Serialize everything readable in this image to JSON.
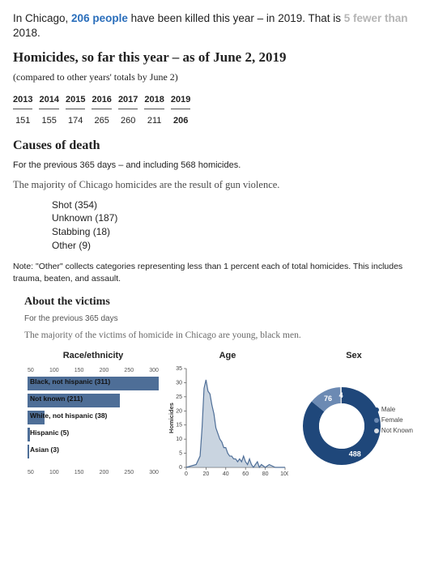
{
  "intro": {
    "prefix": "In Chicago, ",
    "count": "206 people",
    "mid": " have been killed this year – in 2019. That is ",
    "diff": "5 fewer than",
    "suffix": " 2018."
  },
  "homicides_header": "Homicides, so far this year – as of June 2, 2019",
  "compared_line": "(compared to other years' totals by June 2)",
  "year_table": {
    "years": [
      "2013",
      "2014",
      "2015",
      "2016",
      "2017",
      "2018",
      "2019"
    ],
    "values": [
      "151",
      "155",
      "174",
      "265",
      "260",
      "211",
      "206"
    ],
    "current_index": 6
  },
  "causes_header": "Causes of death",
  "causes_sub": "For the previous 365 days – and including 568 homicides.",
  "causes_line": "The majority of Chicago homicides are the result of gun violence.",
  "causes": [
    {
      "label": "Shot (354)"
    },
    {
      "label": "Unknown (187)"
    },
    {
      "label": "Stabbing (18)"
    },
    {
      "label": "Other (9)"
    }
  ],
  "other_note": "Note: \"Other\" collects categories representing less than 1 percent each of total homicides. This includes trauma, beaten, and assault.",
  "victims_header": "About the victims",
  "victims_sub": "For the previous 365 days",
  "victims_line": "The majority of the victims of homicide in Chicago are young, black men.",
  "race_chart": {
    "type": "bar",
    "title": "Race/ethnicity",
    "xmax": 300,
    "xticks": [
      "50",
      "100",
      "150",
      "200",
      "250",
      "300"
    ],
    "bars": [
      {
        "label": "Black, not hispanic (311)",
        "value": 311,
        "label_inside": true
      },
      {
        "label": "Not known (211)",
        "value": 211,
        "label_inside": true
      },
      {
        "label": "White, not hispanic (38)",
        "value": 38,
        "label_inside": false
      },
      {
        "label": "Hispanic (5)",
        "value": 5,
        "label_inside": false
      },
      {
        "label": "Asian (3)",
        "value": 3,
        "label_inside": false
      }
    ],
    "bar_color": "#4e6e97",
    "row_gap": 21
  },
  "age_chart": {
    "type": "line",
    "title": "Age",
    "ylabel": "Homicides",
    "xlim": [
      0,
      100
    ],
    "ylim": [
      0,
      35
    ],
    "xticks": [
      0,
      20,
      40,
      60,
      80,
      100
    ],
    "yticks": [
      0,
      5,
      10,
      15,
      20,
      25,
      30,
      35
    ],
    "line_color": "#4e6e97",
    "fill_color": "#9db0c7",
    "points": [
      [
        0,
        0
      ],
      [
        10,
        1
      ],
      [
        14,
        4
      ],
      [
        16,
        14
      ],
      [
        18,
        28
      ],
      [
        20,
        31
      ],
      [
        22,
        27
      ],
      [
        24,
        26
      ],
      [
        26,
        22
      ],
      [
        28,
        19
      ],
      [
        30,
        14
      ],
      [
        32,
        12
      ],
      [
        34,
        10
      ],
      [
        36,
        9
      ],
      [
        38,
        7
      ],
      [
        40,
        7
      ],
      [
        42,
        5
      ],
      [
        44,
        4
      ],
      [
        46,
        4
      ],
      [
        48,
        3
      ],
      [
        50,
        3
      ],
      [
        52,
        2
      ],
      [
        54,
        3
      ],
      [
        56,
        2
      ],
      [
        58,
        4
      ],
      [
        60,
        2
      ],
      [
        62,
        1
      ],
      [
        64,
        3
      ],
      [
        66,
        1
      ],
      [
        68,
        0
      ],
      [
        70,
        1
      ],
      [
        72,
        2
      ],
      [
        74,
        0
      ],
      [
        76,
        1
      ],
      [
        80,
        0
      ],
      [
        84,
        1
      ],
      [
        90,
        0
      ],
      [
        100,
        0
      ]
    ]
  },
  "sex_chart": {
    "type": "donut",
    "title": "Sex",
    "total": 568,
    "slices": [
      {
        "label": "Male",
        "value": 488,
        "color": "#1f477a"
      },
      {
        "label": "Female",
        "value": 76,
        "color": "#6c8ab3"
      },
      {
        "label": "Not Known",
        "value": 4,
        "color": "#d9dde3"
      }
    ],
    "value_labels": {
      "male": "488",
      "female": "76",
      "notknown": "4"
    },
    "center_color": "#ffffff"
  }
}
